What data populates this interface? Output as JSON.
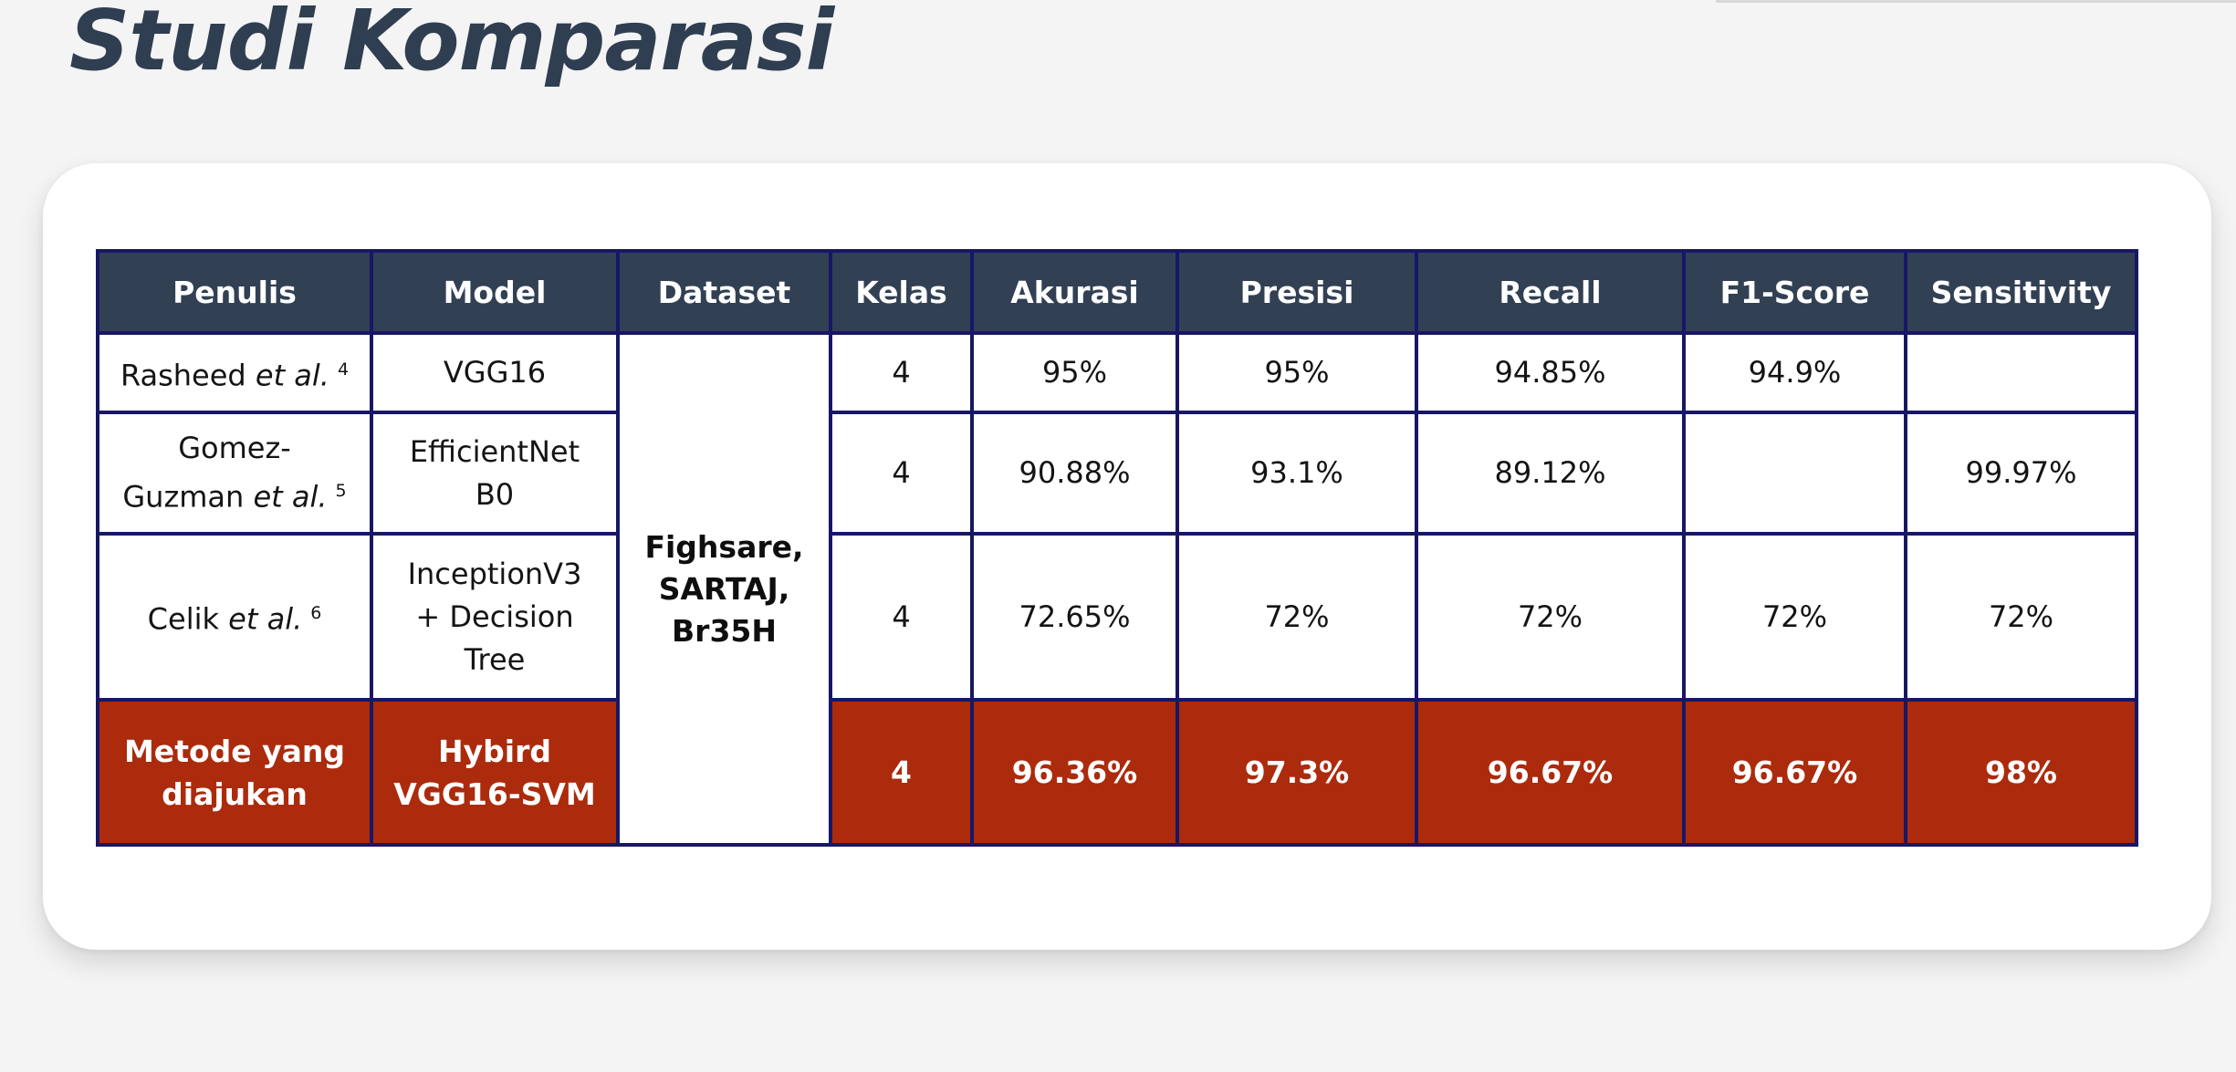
{
  "title": "Studi Komparasi",
  "colors": {
    "header_bg": "#324054",
    "border": "#171766",
    "proposed_row_bg": "#ab2b0c",
    "title_color": "#2f3e51"
  },
  "table": {
    "headers": [
      "Penulis",
      "Model",
      "Dataset",
      "Kelas",
      "Akurasi",
      "Presisi",
      "Recall",
      "F1-Score",
      "Sensitivity"
    ],
    "dataset_lines": [
      "Fighsare,",
      "SARTAJ,",
      "Br35H"
    ],
    "rows": [
      {
        "author_lines": [
          "Rasheed"
        ],
        "etal": "et al.",
        "ref": "4",
        "model_lines": [
          "VGG16"
        ],
        "kelas": "4",
        "akurasi": "95%",
        "presisi": "95%",
        "recall": "94.85%",
        "f1": "94.9%",
        "sensitivity": ""
      },
      {
        "author_lines": [
          "Gomez-",
          "Guzman"
        ],
        "etal": "et al.",
        "ref": "5",
        "model_lines": [
          "EfficientNet",
          "B0"
        ],
        "kelas": "4",
        "akurasi": "90.88%",
        "presisi": "93.1%",
        "recall": "89.12%",
        "f1": "",
        "sensitivity": "99.97%"
      },
      {
        "author_lines": [
          "Celik"
        ],
        "etal": "et al.",
        "ref": "6",
        "model_lines": [
          "InceptionV3",
          "+ Decision",
          "Tree"
        ],
        "kelas": "4",
        "akurasi": "72.65%",
        "presisi": "72%",
        "recall": "72%",
        "f1": "72%",
        "sensitivity": "72%"
      }
    ],
    "proposed": {
      "author_lines": [
        "Metode yang",
        "diajukan"
      ],
      "model_lines": [
        "Hybird",
        "VGG16-SVM"
      ],
      "kelas": "4",
      "akurasi": "96.36%",
      "presisi": "97.3%",
      "recall": "96.67%",
      "f1": "96.67%",
      "sensitivity": "98%"
    }
  }
}
